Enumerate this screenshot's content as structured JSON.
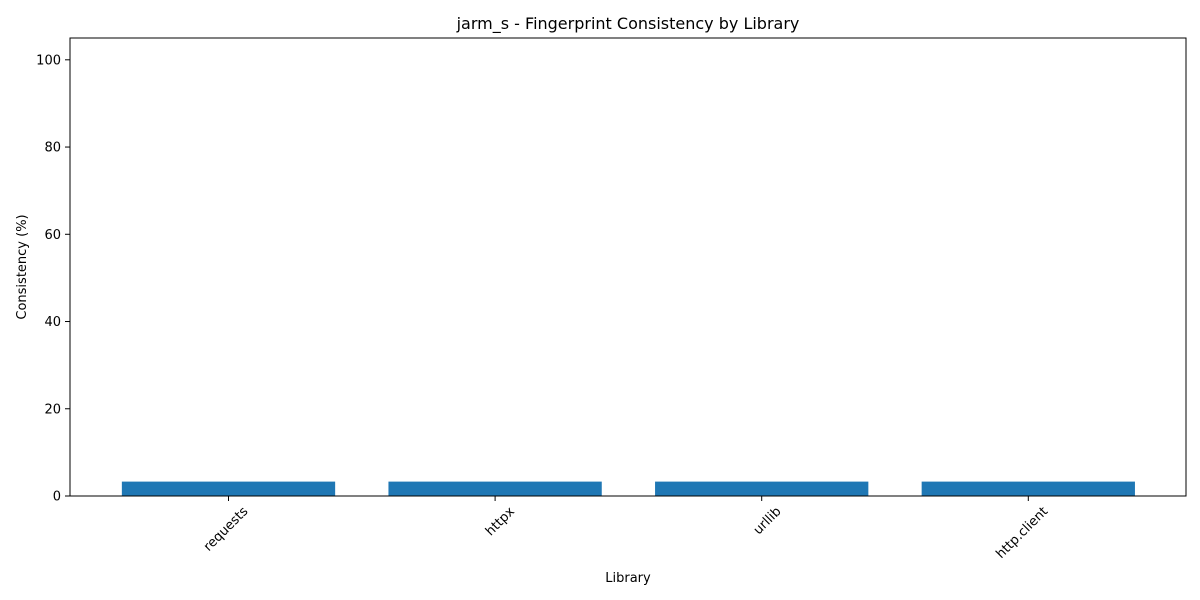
{
  "chart_data": {
    "type": "bar",
    "title": "jarm_s - Fingerprint Consistency by Library",
    "xlabel": "Library",
    "ylabel": "Consistency (%)",
    "categories": [
      "requests",
      "httpx",
      "urllib",
      "http.client"
    ],
    "values": [
      3.3,
      3.3,
      3.3,
      3.3
    ],
    "ylim": [
      0,
      105
    ],
    "yticks": [
      0,
      20,
      40,
      60,
      80,
      100
    ],
    "ytick_labels": [
      "0",
      "20",
      "40",
      "60",
      "80",
      "100"
    ],
    "grid": false,
    "bar_color": "#1f77b4",
    "xtick_rotation_deg": 45
  }
}
